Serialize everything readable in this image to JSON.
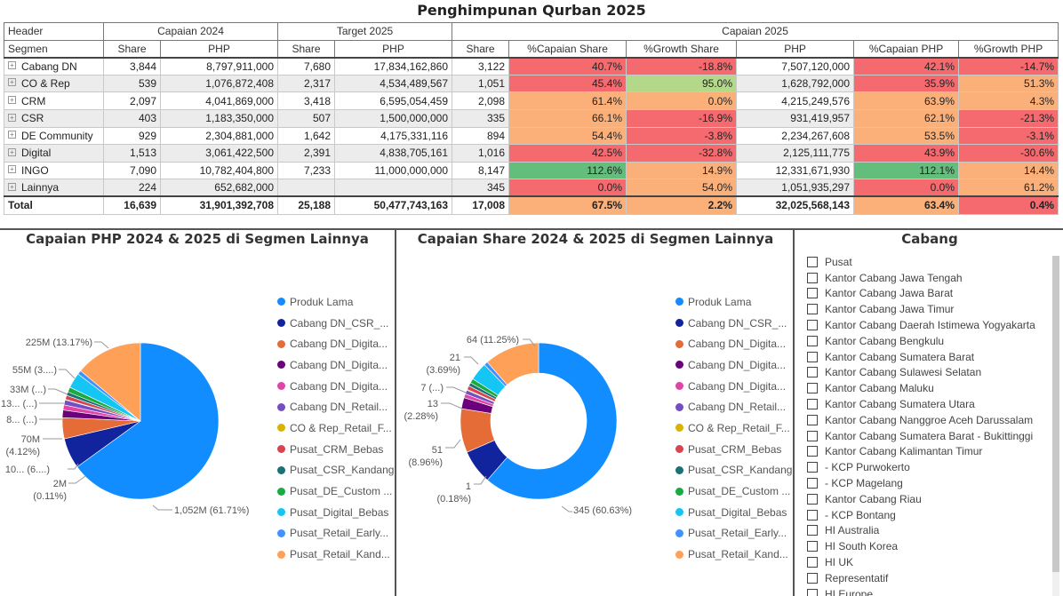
{
  "page_title": "Penghimpunan Qurban 2025",
  "table": {
    "header_groups": [
      "Header",
      "Capaian 2024",
      "Target 2025",
      "Capaian 2025"
    ],
    "columns": [
      "Segmen",
      "Share",
      "PHP",
      "Share",
      "PHP",
      "Share",
      "%Capaian Share",
      "%Growth Share",
      "PHP",
      "%Capaian PHP",
      "%Growth PHP"
    ],
    "rows": [
      {
        "segmen": "Cabang DN",
        "s24": "3,844",
        "p24": "8,797,911,000",
        "st": "7,680",
        "pt": "17,834,162,860",
        "s25": "3,122",
        "cs": "40.7%",
        "gs": "-18.8%",
        "p25": "7,507,120,000",
        "cp": "42.1%",
        "gp": "-14.7%"
      },
      {
        "segmen": "CO & Rep",
        "s24": "539",
        "p24": "1,076,872,408",
        "st": "2,317",
        "pt": "4,534,489,567",
        "s25": "1,051",
        "cs": "45.4%",
        "gs": "95.0%",
        "p25": "1,628,792,000",
        "cp": "35.9%",
        "gp": "51.3%"
      },
      {
        "segmen": "CRM",
        "s24": "2,097",
        "p24": "4,041,869,000",
        "st": "3,418",
        "pt": "6,595,054,459",
        "s25": "2,098",
        "cs": "61.4%",
        "gs": "0.0%",
        "p25": "4,215,249,576",
        "cp": "63.9%",
        "gp": "4.3%"
      },
      {
        "segmen": "CSR",
        "s24": "403",
        "p24": "1,183,350,000",
        "st": "507",
        "pt": "1,500,000,000",
        "s25": "335",
        "cs": "66.1%",
        "gs": "-16.9%",
        "p25": "931,419,957",
        "cp": "62.1%",
        "gp": "-21.3%"
      },
      {
        "segmen": "DE Community",
        "s24": "929",
        "p24": "2,304,881,000",
        "st": "1,642",
        "pt": "4,175,331,116",
        "s25": "894",
        "cs": "54.4%",
        "gs": "-3.8%",
        "p25": "2,234,267,608",
        "cp": "53.5%",
        "gp": "-3.1%"
      },
      {
        "segmen": "Digital",
        "s24": "1,513",
        "p24": "3,061,422,500",
        "st": "2,391",
        "pt": "4,838,705,161",
        "s25": "1,016",
        "cs": "42.5%",
        "gs": "-32.8%",
        "p25": "2,125,111,775",
        "cp": "43.9%",
        "gp": "-30.6%"
      },
      {
        "segmen": "INGO",
        "s24": "7,090",
        "p24": "10,782,404,800",
        "st": "7,233",
        "pt": "11,000,000,000",
        "s25": "8,147",
        "cs": "112.6%",
        "gs": "14.9%",
        "p25": "12,331,671,930",
        "cp": "112.1%",
        "gp": "14.4%"
      },
      {
        "segmen": "Lainnya",
        "s24": "224",
        "p24": "652,682,000",
        "st": "",
        "pt": "",
        "s25": "345",
        "cs": "0.0%",
        "gs": "54.0%",
        "p25": "1,051,935,297",
        "cp": "0.0%",
        "gp": "61.2%"
      }
    ],
    "total": {
      "segmen": "Total",
      "s24": "16,639",
      "p24": "31,901,392,708",
      "st": "25,188",
      "pt": "50,477,743,163",
      "s25": "17,008",
      "cs": "67.5%",
      "gs": "2.2%",
      "p25": "32,025,568,143",
      "cp": "63.4%",
      "gp": "0.4%"
    },
    "cell_colors": {
      "red": "#f46a6e",
      "orange": "#fbb07a",
      "green": "#63be7b",
      "lightgreen": "#b4d88a"
    },
    "color_map": {
      "cs": [
        "red",
        "red",
        "orange",
        "orange",
        "orange",
        "red",
        "green",
        "red"
      ],
      "gs": [
        "red",
        "lightgreen",
        "orange",
        "red",
        "red",
        "red",
        "orange",
        "orange"
      ],
      "cp": [
        "red",
        "red",
        "orange",
        "orange",
        "orange",
        "red",
        "green",
        "red"
      ],
      "gp": [
        "red",
        "orange",
        "orange",
        "red",
        "red",
        "red",
        "orange",
        "orange"
      ],
      "total": {
        "cs": "orange",
        "gs": "orange",
        "cp": "orange",
        "gp": "red"
      }
    }
  },
  "legend": [
    {
      "label": "Produk Lama",
      "color": "#118dff"
    },
    {
      "label": "Cabang DN_CSR_...",
      "color": "#12239e"
    },
    {
      "label": "Cabang DN_Digita...",
      "color": "#e66c37"
    },
    {
      "label": "Cabang DN_Digita...",
      "color": "#6b007b"
    },
    {
      "label": "Cabang DN_Digita...",
      "color": "#e044a7"
    },
    {
      "label": "Cabang DN_Retail...",
      "color": "#744ec2"
    },
    {
      "label": "CO & Rep_Retail_F...",
      "color": "#d9b300"
    },
    {
      "label": "Pusat_CRM_Bebas",
      "color": "#d64550"
    },
    {
      "label": "Pusat_CSR_Kandang",
      "color": "#197278"
    },
    {
      "label": "Pusat_DE_Custom ...",
      "color": "#1aab40"
    },
    {
      "label": "Pusat_Digital_Bebas",
      "color": "#15c6f4"
    },
    {
      "label": "Pusat_Retail_Early...",
      "color": "#4092ff"
    },
    {
      "label": "Pusat_Retail_Kand...",
      "color": "#ffa058"
    }
  ],
  "chart_data": [
    {
      "type": "pie",
      "title": "Capaian PHP 2024 & 2025 di Segmen Lainnya",
      "categories": [
        "Produk Lama",
        "Cabang DN_CSR_...",
        "Cabang DN_Digita...",
        "Cabang DN_Digita...",
        "Cabang DN_Digita...",
        "Cabang DN_Retail...",
        "CO & Rep_Retail_F...",
        "Pusat_CRM_Bebas",
        "Pusat_CSR_Kandang",
        "Pusat_DE_Custom ...",
        "Pusat_Digital_Bebas",
        "Pusat_Retail_Early...",
        "Pusat_Retail_Kand..."
      ],
      "values": [
        61.71,
        6.0,
        4.12,
        1.5,
        1.0,
        1.0,
        0.11,
        0.8,
        0.7,
        1.0,
        3.0,
        0.8,
        13.17
      ],
      "data_labels": [
        {
          "text": "1,052M (61.71%)"
        },
        {
          "text": "10... (6....)"
        },
        {
          "text": "70M"
        },
        {
          "text": "(4.12%)"
        },
        {
          "text": "8... (...)"
        },
        {
          "text": "13... (...)"
        },
        {
          "text": "33M (...)"
        },
        {
          "text": "55M (3....)"
        },
        {
          "text": "225M (13.17%)"
        },
        {
          "text": "2M"
        },
        {
          "text": "(0.11%)"
        }
      ]
    },
    {
      "type": "donut",
      "title": "Capaian Share 2024 & 2025 di Segmen Lainnya",
      "categories": [
        "Produk Lama",
        "Cabang DN_CSR_...",
        "Cabang DN_Digita...",
        "Cabang DN_Digita...",
        "Cabang DN_Digita...",
        "Cabang DN_Retail...",
        "CO & Rep_Retail_F...",
        "Pusat_CRM_Bebas",
        "Pusat_CSR_Kandang",
        "Pusat_DE_Custom ...",
        "Pusat_Digital_Bebas",
        "Pusat_Retail_Early...",
        "Pusat_Retail_Kand..."
      ],
      "values": [
        60.63,
        7.0,
        8.96,
        2.28,
        0.8,
        0.8,
        0.18,
        0.8,
        0.7,
        0.9,
        3.69,
        0.8,
        11.25
      ],
      "data_labels": [
        {
          "text": "345 (60.63%)"
        },
        {
          "text": "51"
        },
        {
          "text": "(8.96%)"
        },
        {
          "text": "13"
        },
        {
          "text": "(2.28%)"
        },
        {
          "text": "7 (...)"
        },
        {
          "text": "21"
        },
        {
          "text": "(3.69%)"
        },
        {
          "text": "64 (11.25%)"
        },
        {
          "text": "1"
        },
        {
          "text": "(0.18%)"
        }
      ]
    }
  ],
  "cabang": {
    "title": "Cabang",
    "items": [
      "Pusat",
      "Kantor Cabang Jawa Tengah",
      "Kantor Cabang Jawa Barat",
      "Kantor Cabang Jawa Timur",
      "Kantor Cabang Daerah Istimewa Yogyakarta",
      "Kantor Cabang Bengkulu",
      "Kantor Cabang Sumatera Barat",
      "Kantor Cabang Sulawesi Selatan",
      "Kantor Cabang Maluku",
      "Kantor Cabang Sumatera Utara",
      "Kantor Cabang Nanggroe Aceh Darussalam",
      "Kantor Cabang Sumatera Barat - Bukittinggi",
      "Kantor Cabang Kalimantan Timur",
      "- KCP Purwokerto",
      "- KCP Magelang",
      "Kantor Cabang Riau",
      "- KCP Bontang",
      "HI Australia",
      "HI South Korea",
      "HI UK",
      "Representatif",
      "HI Europe"
    ]
  }
}
